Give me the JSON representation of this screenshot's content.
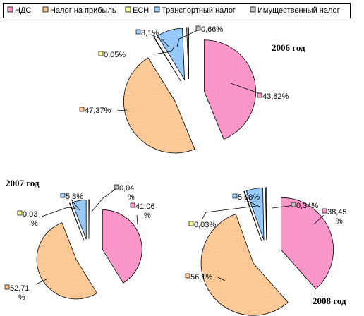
{
  "legend": [
    {
      "label": "НДС",
      "color": "#ff99cc"
    },
    {
      "label": "Налог на прибыль",
      "color": "#ffcc99"
    },
    {
      "label": "ЕСН",
      "color": "#ffff99"
    },
    {
      "label": "Транспортный налог",
      "color": "#99ccff"
    },
    {
      "label": "Имущественный налог",
      "color": "#c0c0c0"
    }
  ],
  "chart_data": [
    {
      "type": "pie",
      "title": "2006 год",
      "categories": [
        "НДС",
        "Налог на прибыль",
        "ЕСН",
        "Транспортный налог",
        "Имущественный налог"
      ],
      "values": [
        43.82,
        47.37,
        0.05,
        8.1,
        0.66
      ],
      "labels": [
        [
          "43,82%"
        ],
        [
          "47,37%"
        ],
        [
          "0,05%"
        ],
        [
          "8,1%"
        ],
        [
          "0,66%"
        ]
      ],
      "colors": [
        "#ff99cc",
        "#ffcc99",
        "#ffff99",
        "#99ccff",
        "#c0c0c0"
      ],
      "start_angle_deg": 0,
      "exploded": true,
      "legend_position": "top"
    },
    {
      "type": "pie",
      "title": "2007 год",
      "categories": [
        "НДС",
        "Налог на прибыль",
        "ЕСН",
        "Транспортный налог",
        "Имущественный налог"
      ],
      "values": [
        41.06,
        52.71,
        0.03,
        5.8,
        0.04
      ],
      "labels": [
        [
          "41,06",
          "%"
        ],
        [
          "52,71",
          "%"
        ],
        [
          "0,03",
          "%"
        ],
        [
          "5,8%"
        ],
        [
          "0,04",
          "%"
        ]
      ],
      "colors": [
        "#ff99cc",
        "#ffcc99",
        "#ffff99",
        "#99ccff",
        "#c0c0c0"
      ],
      "start_angle_deg": 0,
      "exploded": true
    },
    {
      "type": "pie",
      "title": "2008 год",
      "categories": [
        "НДС",
        "Налог на прибыль",
        "ЕСН",
        "Транспортный налог",
        "Имущественный налог"
      ],
      "values": [
        38.45,
        56.1,
        0.03,
        5.08,
        0.34
      ],
      "labels": [
        [
          "38,45",
          "%"
        ],
        [
          "56,1%"
        ],
        [
          "0,03%"
        ],
        [
          "5,08%"
        ],
        [
          "0,34%"
        ]
      ],
      "colors": [
        "#ff99cc",
        "#ffcc99",
        "#ffff99",
        "#99ccff",
        "#c0c0c0"
      ],
      "start_angle_deg": 0,
      "exploded": true
    }
  ]
}
